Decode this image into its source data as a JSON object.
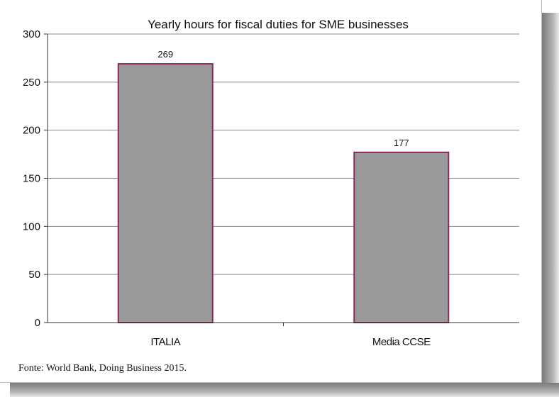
{
  "chart_data": {
    "type": "bar",
    "title": "Yearly hours for fiscal duties for SME businesses",
    "categories": [
      "ITALIA",
      "Media CCSE"
    ],
    "values": [
      269,
      177
    ],
    "data_labels": [
      "269",
      "177"
    ],
    "ylim": [
      0,
      300
    ],
    "yticks": [
      0,
      50,
      100,
      150,
      200,
      250,
      300
    ],
    "xlabel": "",
    "ylabel": "",
    "grid": true,
    "legend": "none",
    "colors": {
      "bar_fill": "#9a9a9a",
      "bar_border": "#8b2a5a",
      "grid": "#8c8c8c"
    }
  },
  "source": "Fonte: World Bank, Doing Business 2015."
}
